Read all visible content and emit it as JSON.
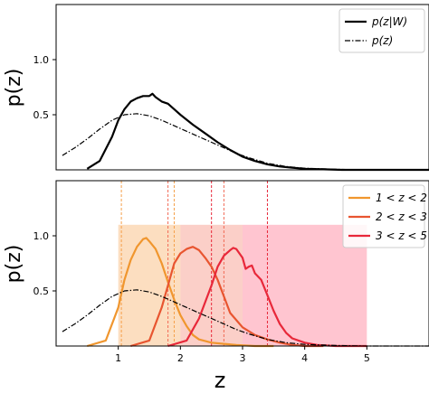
{
  "chart_data": [
    {
      "type": "line",
      "ylabel": "p(z)",
      "xlim": [
        0,
        6
      ],
      "ylim": [
        0,
        1.5
      ],
      "y_ticks": [
        {
          "value": 0.5,
          "label": "0.5"
        },
        {
          "value": 1.0,
          "label": "1.0"
        }
      ],
      "legend_position": "top-right",
      "series": [
        {
          "name": "p(z|W)",
          "color": "#000000",
          "style": "solid",
          "x": [
            0.5,
            0.7,
            0.9,
            1.0,
            1.1,
            1.2,
            1.3,
            1.4,
            1.5,
            1.55,
            1.6,
            1.7,
            1.8,
            1.9,
            2.0,
            2.2,
            2.4,
            2.6,
            2.8,
            3.0,
            3.2,
            3.4,
            3.6,
            3.8,
            4.0,
            4.3,
            4.6,
            5.0,
            5.5,
            6.0
          ],
          "values": [
            0.01,
            0.08,
            0.3,
            0.45,
            0.55,
            0.62,
            0.65,
            0.67,
            0.67,
            0.69,
            0.66,
            0.62,
            0.6,
            0.55,
            0.5,
            0.41,
            0.33,
            0.25,
            0.18,
            0.12,
            0.08,
            0.05,
            0.03,
            0.02,
            0.01,
            0.005,
            0.0,
            0.0,
            0.0,
            0.0
          ]
        },
        {
          "name": "p(z)",
          "color": "#000000",
          "style": "dashdot",
          "x": [
            0.1,
            0.3,
            0.5,
            0.7,
            0.9,
            1.1,
            1.3,
            1.5,
            1.7,
            1.9,
            2.1,
            2.3,
            2.5,
            2.7,
            2.9,
            3.1,
            3.4,
            3.7,
            4.0,
            4.5,
            5.0,
            5.5,
            6.0
          ],
          "values": [
            0.13,
            0.2,
            0.28,
            0.37,
            0.45,
            0.5,
            0.51,
            0.49,
            0.45,
            0.4,
            0.35,
            0.3,
            0.25,
            0.2,
            0.15,
            0.11,
            0.06,
            0.03,
            0.015,
            0.005,
            0.0,
            0.0,
            0.0
          ]
        }
      ]
    },
    {
      "type": "line",
      "xlabel": "z",
      "ylabel": "p(z)",
      "xlim": [
        0,
        6
      ],
      "ylim": [
        0,
        1.5
      ],
      "x_ticks": [
        {
          "value": 1,
          "label": "1"
        },
        {
          "value": 2,
          "label": "2"
        },
        {
          "value": 3,
          "label": "3"
        },
        {
          "value": 4,
          "label": "4"
        },
        {
          "value": 5,
          "label": "5"
        }
      ],
      "y_ticks": [
        {
          "value": 0.5,
          "label": "0.5"
        },
        {
          "value": 1.0,
          "label": "1.0"
        }
      ],
      "legend_position": "top-right",
      "bands": [
        {
          "x0": 1,
          "x1": 2,
          "y1": 1.1,
          "color": "#f5a04a",
          "opacity": 0.35
        },
        {
          "x0": 2,
          "x1": 3,
          "y1": 1.1,
          "color": "#f26a55",
          "opacity": 0.32
        },
        {
          "x0": 3,
          "x1": 5,
          "y1": 1.1,
          "color": "#ff5a78",
          "opacity": 0.35
        }
      ],
      "vlines": [
        {
          "x": 1.05,
          "color": "#f5a04a"
        },
        {
          "x": 1.8,
          "color": "#f26a55"
        },
        {
          "x": 1.9,
          "color": "#f5a04a"
        },
        {
          "x": 2.5,
          "color": "#e8283a"
        },
        {
          "x": 2.7,
          "color": "#f26a55"
        },
        {
          "x": 3.4,
          "color": "#e8283a"
        }
      ],
      "series": [
        {
          "name": "1 < z < 2",
          "color": "#f0962e",
          "style": "solid",
          "x": [
            0.5,
            0.8,
            1.0,
            1.1,
            1.2,
            1.3,
            1.4,
            1.45,
            1.5,
            1.6,
            1.7,
            1.8,
            1.9,
            2.0,
            2.1,
            2.2,
            2.3,
            2.5,
            2.7,
            2.9,
            3.2,
            3.5
          ],
          "values": [
            0.0,
            0.05,
            0.35,
            0.6,
            0.78,
            0.9,
            0.97,
            0.98,
            0.95,
            0.88,
            0.75,
            0.58,
            0.42,
            0.28,
            0.18,
            0.1,
            0.06,
            0.03,
            0.02,
            0.01,
            0.0,
            0.0
          ]
        },
        {
          "name": "2 < z < 3",
          "color": "#e85530",
          "style": "solid",
          "x": [
            1.2,
            1.5,
            1.7,
            1.8,
            1.9,
            2.0,
            2.1,
            2.2,
            2.3,
            2.4,
            2.5,
            2.6,
            2.7,
            2.8,
            3.0,
            3.2,
            3.4,
            3.6,
            3.8,
            4.0,
            4.3
          ],
          "values": [
            0.0,
            0.05,
            0.35,
            0.55,
            0.75,
            0.84,
            0.88,
            0.9,
            0.87,
            0.8,
            0.72,
            0.6,
            0.45,
            0.3,
            0.17,
            0.1,
            0.06,
            0.03,
            0.01,
            0.0,
            0.0
          ]
        },
        {
          "name": "3 < z < 5",
          "color": "#e8283a",
          "style": "solid",
          "x": [
            1.8,
            2.1,
            2.3,
            2.5,
            2.6,
            2.7,
            2.8,
            2.85,
            2.9,
            3.0,
            3.05,
            3.1,
            3.15,
            3.2,
            3.3,
            3.4,
            3.5,
            3.6,
            3.7,
            3.8,
            4.0,
            4.2,
            4.5,
            5.0
          ],
          "values": [
            0.0,
            0.05,
            0.25,
            0.55,
            0.72,
            0.82,
            0.87,
            0.89,
            0.88,
            0.8,
            0.7,
            0.72,
            0.73,
            0.66,
            0.6,
            0.46,
            0.32,
            0.2,
            0.12,
            0.07,
            0.03,
            0.01,
            0.0,
            0.0
          ]
        },
        {
          "name": "",
          "color": "#000000",
          "style": "dashdot",
          "x": [
            0.1,
            0.3,
            0.5,
            0.7,
            0.9,
            1.1,
            1.3,
            1.5,
            1.7,
            1.9,
            2.1,
            2.3,
            2.5,
            2.7,
            2.9,
            3.1,
            3.4,
            3.7,
            4.0,
            4.5,
            5.0,
            5.5,
            6.0
          ],
          "values": [
            0.13,
            0.2,
            0.28,
            0.37,
            0.45,
            0.5,
            0.51,
            0.49,
            0.45,
            0.4,
            0.35,
            0.3,
            0.25,
            0.2,
            0.15,
            0.11,
            0.06,
            0.03,
            0.015,
            0.005,
            0.0,
            0.0,
            0.0
          ]
        }
      ]
    }
  ]
}
